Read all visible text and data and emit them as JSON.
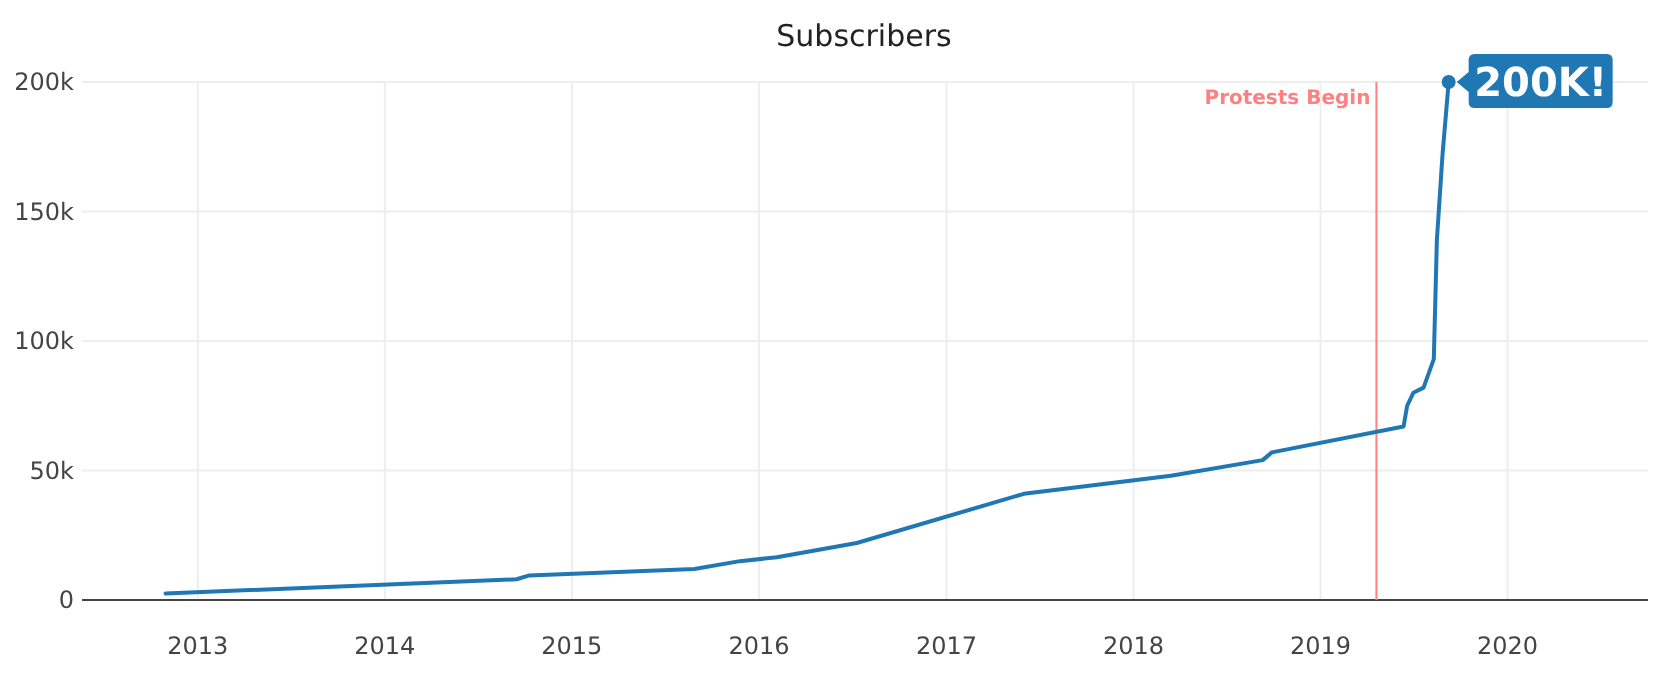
{
  "chart_data": {
    "type": "line",
    "title": "Subscribers",
    "x": [
      "2012-10-30",
      "2014-09-15",
      "2014-10-10",
      "2015-08-28",
      "2015-11-25",
      "2016-02-05",
      "2016-07-10",
      "2017-06-01",
      "2018-03-15",
      "2018-09-10",
      "2018-09-28",
      "2019-06-12",
      "2019-06-19",
      "2019-07-01",
      "2019-07-21",
      "2019-08-10",
      "2019-08-16",
      "2019-08-27",
      "2019-09-08"
    ],
    "series": [
      {
        "color": "#1f77b4",
        "values": [
          2500,
          8000,
          9500,
          12000,
          15000,
          16500,
          22000,
          41000,
          48000,
          54000,
          57000,
          67000,
          75000,
          80000,
          82000,
          93000,
          139000,
          172000,
          200000
        ]
      }
    ],
    "xlim": [
      "2012-05-20",
      "2020-10-01"
    ],
    "xticks": [
      {
        "value": "2013-01-01",
        "label": "2013"
      },
      {
        "value": "2014-01-01",
        "label": "2014"
      },
      {
        "value": "2015-01-01",
        "label": "2015"
      },
      {
        "value": "2016-01-01",
        "label": "2016"
      },
      {
        "value": "2017-01-01",
        "label": "2017"
      },
      {
        "value": "2018-01-01",
        "label": "2018"
      },
      {
        "value": "2019-01-01",
        "label": "2019"
      },
      {
        "value": "2020-01-01",
        "label": "2020"
      }
    ],
    "ylim": [
      0,
      200000
    ],
    "yticks": [
      0,
      {
        "value": 50000,
        "label": "50k"
      },
      {
        "value": 100000,
        "label": "100k"
      },
      {
        "value": 150000,
        "label": "150k"
      },
      {
        "value": 200000,
        "label": "200k"
      }
    ],
    "grid": true,
    "marker": "none",
    "line_style": "solid",
    "ref_lines": [
      {
        "axis": "x",
        "value": "2019-04-20",
        "label": "Protests Begin",
        "color": "#ff8080"
      }
    ],
    "annotations": [
      {
        "text": "200K!",
        "x": "2019-09-08",
        "y": 200000
      }
    ]
  }
}
